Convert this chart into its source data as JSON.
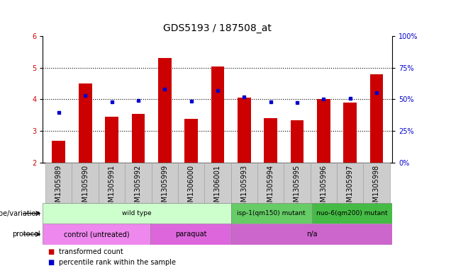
{
  "title": "GDS5193 / 187508_at",
  "samples": [
    "GSM1305989",
    "GSM1305990",
    "GSM1305991",
    "GSM1305992",
    "GSM1305999",
    "GSM1306000",
    "GSM1306001",
    "GSM1305993",
    "GSM1305994",
    "GSM1305995",
    "GSM1305996",
    "GSM1305997",
    "GSM1305998"
  ],
  "red_values": [
    2.7,
    4.5,
    3.45,
    3.55,
    5.3,
    3.38,
    5.05,
    4.05,
    3.4,
    3.35,
    4.0,
    3.9,
    4.8
  ],
  "blue_values": [
    3.58,
    4.12,
    3.93,
    3.97,
    4.32,
    3.95,
    4.28,
    4.08,
    3.93,
    3.91,
    4.02,
    4.03,
    4.22
  ],
  "ylim_left": [
    2,
    6
  ],
  "ylim_right": [
    0,
    100
  ],
  "yticks_left": [
    2,
    3,
    4,
    5,
    6
  ],
  "yticks_right": [
    0,
    25,
    50,
    75,
    100
  ],
  "bar_bottom": 2.0,
  "bar_color": "#CC0000",
  "dot_color": "#0000CC",
  "bar_width": 0.5,
  "bg_color": "#ffffff",
  "plot_bg": "#ffffff",
  "genotype_row": [
    {
      "label": "wild type",
      "start": 0,
      "end": 6,
      "color": "#ccffcc"
    },
    {
      "label": "isp-1(qm150) mutant",
      "start": 7,
      "end": 9,
      "color": "#66cc66"
    },
    {
      "label": "nuo-6(qm200) mutant",
      "start": 10,
      "end": 12,
      "color": "#44bb44"
    }
  ],
  "protocol_row": [
    {
      "label": "control (untreated)",
      "start": 0,
      "end": 3,
      "color": "#ee88ee"
    },
    {
      "label": "paraquat",
      "start": 4,
      "end": 6,
      "color": "#dd66dd"
    },
    {
      "label": "n/a",
      "start": 7,
      "end": 12,
      "color": "#cc66cc"
    }
  ],
  "legend_red_label": "transformed count",
  "legend_blue_label": "percentile rank within the sample",
  "left_label_color": "#CC0000",
  "right_label_color": "#0000CC",
  "font_size_title": 10,
  "font_size_ticks": 7,
  "font_size_row_labels": 7,
  "font_size_annot": 7,
  "xtick_bg_color": "#cccccc",
  "xtick_border_color": "#999999"
}
